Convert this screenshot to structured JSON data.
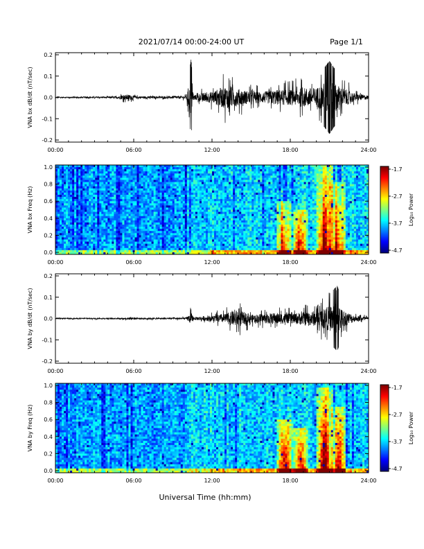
{
  "header": {
    "title": "2021/07/14  00:00-24:00 UT",
    "page": "Page 1/1"
  },
  "footer": {
    "xlabel": "Universal Time (hh:mm)"
  },
  "chart_data": [
    {
      "type": "line",
      "ylabel": "VNA bx dB/dt (nT/sec)",
      "xlim": [
        "00:00",
        "24:00"
      ],
      "ylim": [
        -0.2,
        0.2
      ],
      "xticks": [
        "00:00",
        "06:00",
        "12:00",
        "18:00",
        "24:00"
      ],
      "yticks": [
        "0.2",
        "0.1",
        "0.0",
        "-0.1",
        "-0.2"
      ],
      "envelope_hours": [
        0,
        4.5,
        5.5,
        6.2,
        8,
        10,
        10.4,
        10.6,
        11,
        12,
        13,
        14,
        15,
        16,
        17,
        18,
        19,
        20,
        21,
        21.5,
        22,
        23,
        24
      ],
      "envelope_amplitude": [
        0.006,
        0.007,
        0.03,
        0.012,
        0.01,
        0.015,
        0.2,
        0.02,
        0.04,
        0.06,
        0.12,
        0.09,
        0.06,
        0.06,
        0.08,
        0.08,
        0.1,
        0.1,
        0.19,
        0.14,
        0.1,
        0.04,
        0.02
      ]
    },
    {
      "type": "heatmap",
      "ylabel": "VNA bx Freq (Hz)",
      "xlim": [
        "00:00",
        "24:00"
      ],
      "ylim": [
        0.0,
        1.0
      ],
      "xticks": [
        "00:00",
        "06:00",
        "12:00",
        "18:00",
        "24:00"
      ],
      "yticks": [
        "1.0",
        "0.8",
        "0.6",
        "0.4",
        "0.2",
        "0.0"
      ],
      "colorbar": {
        "label": "Log₁₀ Power",
        "ticks": [
          "-1.7",
          "-2.7",
          "-3.7",
          "-4.7"
        ]
      },
      "hotspots": [
        {
          "hour": 17.5,
          "freq_max": 0.6,
          "level": 0.55
        },
        {
          "hour": 18.7,
          "freq_max": 0.5,
          "level": 0.5
        },
        {
          "hour": 20.6,
          "freq_max": 1.0,
          "level": 0.75
        },
        {
          "hour": 21.6,
          "freq_max": 0.8,
          "level": 0.6
        }
      ]
    },
    {
      "type": "line",
      "ylabel": "VNA by dB/dt (nT/sec)",
      "xlim": [
        "00:00",
        "24:00"
      ],
      "ylim": [
        -0.2,
        0.2
      ],
      "xticks": [
        "00:00",
        "06:00",
        "12:00",
        "18:00",
        "24:00"
      ],
      "yticks": [
        "0.2",
        "0.1",
        "0.0",
        "-0.1",
        "-0.2"
      ],
      "envelope_hours": [
        0,
        5,
        5.7,
        6.5,
        8,
        10,
        10.4,
        10.6,
        11,
        12,
        13,
        14,
        15,
        16,
        17,
        18,
        19,
        20,
        21,
        21.6,
        22,
        23,
        24
      ],
      "envelope_amplitude": [
        0.005,
        0.006,
        0.012,
        0.008,
        0.008,
        0.01,
        0.06,
        0.015,
        0.02,
        0.03,
        0.05,
        0.09,
        0.04,
        0.05,
        0.06,
        0.05,
        0.07,
        0.08,
        0.13,
        0.17,
        0.09,
        0.03,
        0.015
      ]
    },
    {
      "type": "heatmap",
      "ylabel": "VNA by Freq (Hz)",
      "xlim": [
        "00:00",
        "24:00"
      ],
      "ylim": [
        0.0,
        1.0
      ],
      "xticks": [
        "00:00",
        "06:00",
        "12:00",
        "18:00",
        "24:00"
      ],
      "yticks": [
        "1.0",
        "0.8",
        "0.6",
        "0.4",
        "0.2",
        "0.0"
      ],
      "colorbar": {
        "label": "Log₁₀ Power",
        "ticks": [
          "-1.7",
          "-2.7",
          "-3.7",
          "-4.7"
        ]
      },
      "hotspots": [
        {
          "hour": 17.6,
          "freq_max": 0.6,
          "level": 0.6
        },
        {
          "hour": 18.8,
          "freq_max": 0.5,
          "level": 0.5
        },
        {
          "hour": 20.6,
          "freq_max": 0.95,
          "level": 0.75
        },
        {
          "hour": 21.7,
          "freq_max": 0.75,
          "level": 0.55
        }
      ]
    }
  ]
}
